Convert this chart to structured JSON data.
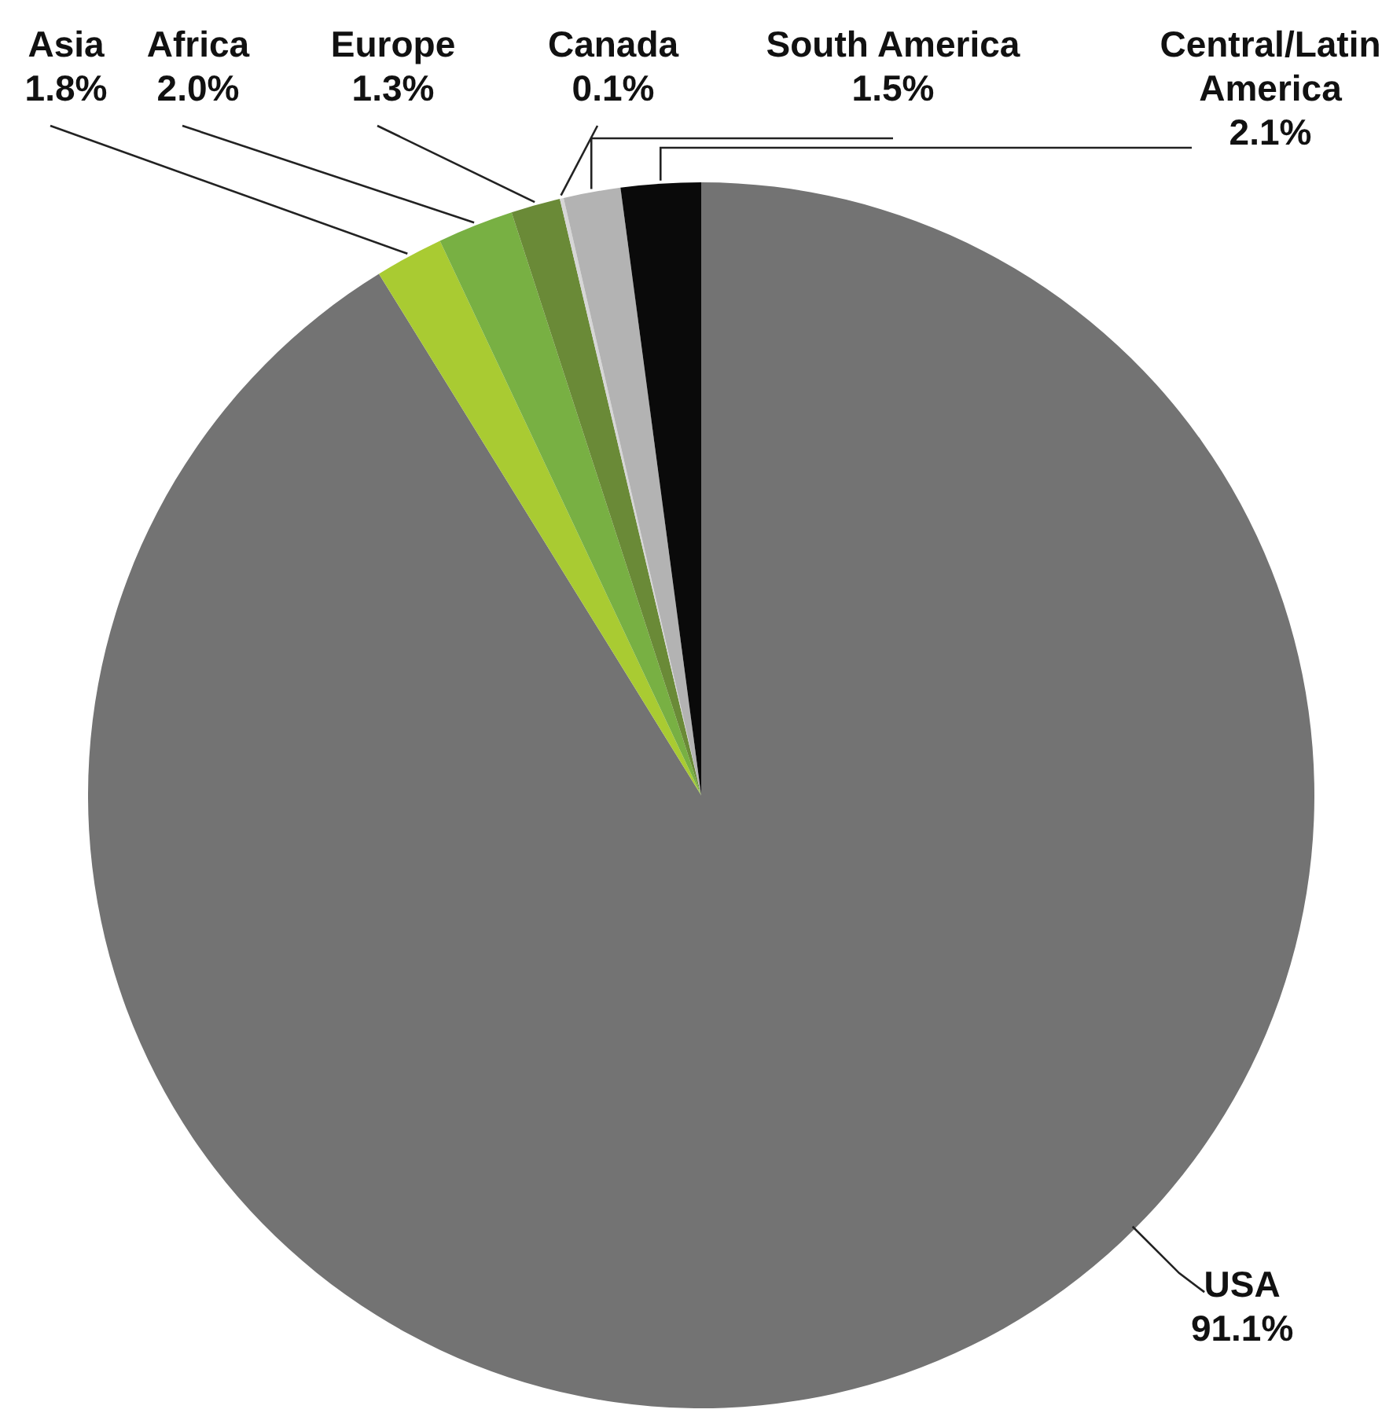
{
  "chart_data": {
    "type": "pie",
    "categories": [
      "USA",
      "Asia",
      "Africa",
      "Europe",
      "Canada",
      "South America",
      "Central/Latin America"
    ],
    "values": [
      91.1,
      1.8,
      2.0,
      1.3,
      0.1,
      1.5,
      2.1
    ],
    "colors": [
      "#737373",
      "#a9cb32",
      "#78b043",
      "#6a8a37",
      "#d6d6d6",
      "#b3b3b3",
      "#0a0a0a"
    ],
    "value_labels": [
      "91.1%",
      "1.8%",
      "2.0%",
      "1.3%",
      "0.1%",
      "1.5%",
      "2.1%"
    ]
  }
}
